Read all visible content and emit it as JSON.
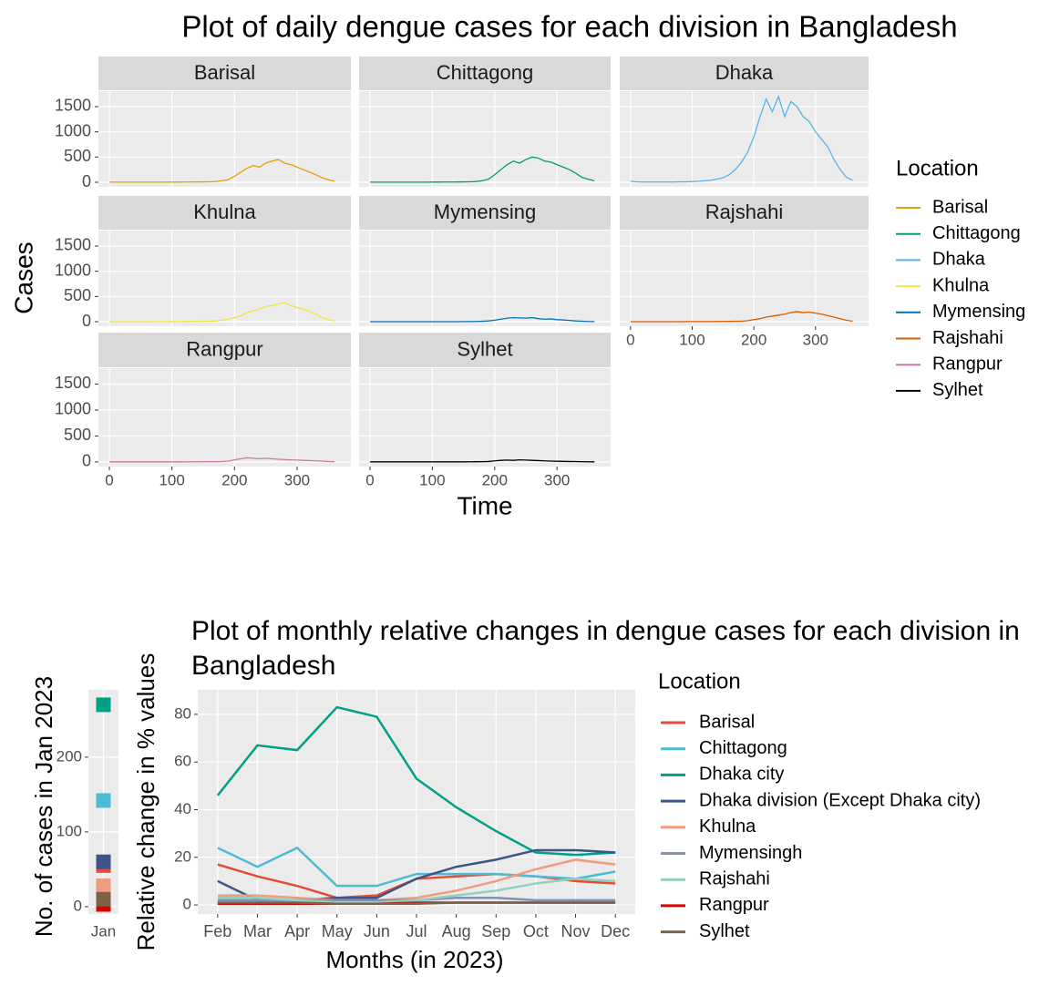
{
  "chart_data": [
    {
      "type": "line",
      "title": "Plot of daily dengue cases for each division in Bangladesh",
      "x_label": "Time",
      "y_label": "Cases",
      "legend_title": "Location",
      "legend": "right",
      "grid": true,
      "facets": true,
      "x": [
        0,
        10,
        20,
        30,
        40,
        50,
        60,
        70,
        80,
        90,
        100,
        110,
        120,
        130,
        140,
        150,
        160,
        170,
        180,
        190,
        200,
        210,
        220,
        230,
        240,
        250,
        260,
        270,
        280,
        290,
        300,
        310,
        320,
        330,
        340,
        350,
        360
      ],
      "xlim": [
        -17.5,
        386
      ],
      "xticks": [
        0,
        100,
        200,
        300
      ],
      "ylim": [
        -90,
        1807
      ],
      "yticks": [
        0,
        500,
        1000,
        1500
      ],
      "series": [
        {
          "name": "Barisal",
          "color": "#E69F00",
          "values": [
            2,
            2,
            2,
            2,
            2,
            2,
            2,
            3,
            3,
            3,
            4,
            4,
            5,
            5,
            6,
            8,
            10,
            15,
            30,
            50,
            120,
            200,
            280,
            330,
            300,
            380,
            420,
            450,
            380,
            350,
            300,
            250,
            200,
            150,
            90,
            50,
            20
          ]
        },
        {
          "name": "Chittagong",
          "color": "#009E73",
          "values": [
            2,
            2,
            2,
            2,
            2,
            2,
            2,
            3,
            3,
            3,
            4,
            4,
            5,
            5,
            6,
            8,
            10,
            15,
            30,
            60,
            150,
            250,
            350,
            420,
            380,
            450,
            500,
            480,
            420,
            400,
            350,
            300,
            250,
            180,
            100,
            60,
            30
          ]
        },
        {
          "name": "Dhaka",
          "color": "#56B4E9",
          "values": [
            20,
            10,
            5,
            5,
            5,
            5,
            5,
            5,
            10,
            10,
            15,
            20,
            30,
            40,
            60,
            90,
            150,
            250,
            400,
            600,
            900,
            1300,
            1650,
            1400,
            1700,
            1300,
            1600,
            1500,
            1300,
            1200,
            1000,
            850,
            700,
            450,
            250,
            100,
            40
          ]
        },
        {
          "name": "Khulna",
          "color": "#F0E442",
          "values": [
            1,
            1,
            1,
            1,
            1,
            1,
            1,
            2,
            2,
            2,
            3,
            3,
            4,
            5,
            6,
            8,
            10,
            15,
            30,
            50,
            80,
            120,
            180,
            220,
            250,
            300,
            320,
            350,
            380,
            320,
            280,
            250,
            200,
            150,
            80,
            40,
            15
          ]
        },
        {
          "name": "Mymensing",
          "color": "#0072B2",
          "values": [
            1,
            1,
            1,
            1,
            1,
            1,
            1,
            1,
            1,
            1,
            1,
            1,
            1,
            1,
            1,
            2,
            3,
            5,
            8,
            15,
            30,
            50,
            70,
            80,
            75,
            70,
            80,
            60,
            50,
            55,
            40,
            35,
            25,
            15,
            10,
            5,
            3
          ]
        },
        {
          "name": "Rajshahi",
          "color": "#D55E00",
          "values": [
            1,
            1,
            1,
            1,
            1,
            1,
            1,
            1,
            1,
            2,
            2,
            2,
            3,
            3,
            4,
            5,
            6,
            8,
            10,
            20,
            40,
            60,
            90,
            110,
            130,
            150,
            180,
            200,
            180,
            190,
            170,
            150,
            120,
            90,
            60,
            30,
            10
          ]
        },
        {
          "name": "Rangpur",
          "color": "#CC79A7",
          "values": [
            1,
            1,
            1,
            1,
            1,
            1,
            1,
            1,
            1,
            1,
            1,
            1,
            1,
            2,
            2,
            3,
            4,
            5,
            8,
            15,
            40,
            60,
            80,
            70,
            60,
            70,
            60,
            50,
            45,
            40,
            35,
            30,
            25,
            20,
            15,
            8,
            4
          ]
        },
        {
          "name": "Sylhet",
          "color": "#000000",
          "values": [
            1,
            1,
            1,
            1,
            1,
            1,
            1,
            1,
            1,
            1,
            1,
            1,
            1,
            1,
            1,
            1,
            2,
            3,
            4,
            8,
            20,
            30,
            35,
            30,
            40,
            35,
            30,
            25,
            20,
            15,
            12,
            10,
            8,
            6,
            4,
            2,
            1
          ]
        }
      ]
    },
    {
      "type": "strip",
      "y_label": "No. of cases in Jan 2023",
      "categories": [
        "Jan"
      ],
      "grid": true,
      "ylim": [
        -9.8,
        290
      ],
      "yticks": [
        0,
        100,
        200
      ],
      "series": [
        {
          "color": "#E64B35",
          "values": [
            55
          ]
        },
        {
          "color": "#4DBBD5",
          "values": [
            142
          ]
        },
        {
          "color": "#00A087",
          "values": [
            270
          ]
        },
        {
          "color": "#3C5488",
          "values": [
            60
          ]
        },
        {
          "color": "#F39B7F",
          "values": [
            28
          ]
        },
        {
          "color": "#8491B4",
          "values": [
            5
          ]
        },
        {
          "color": "#91D1C2",
          "values": [
            10
          ]
        },
        {
          "color": "#DC0000",
          "values": [
            3
          ]
        },
        {
          "color": "#7E6148",
          "values": [
            10
          ]
        }
      ]
    },
    {
      "type": "line",
      "title": "Plot of monthly relative changes in dengue cases for each division in Bangladesh",
      "x_label": "Months (in 2023)",
      "y_label": "Relative change in % values",
      "legend_title": "Location",
      "legend": "right",
      "grid": true,
      "categories": [
        "Feb",
        "Mar",
        "Apr",
        "May",
        "Jun",
        "Jul",
        "Aug",
        "Sep",
        "Oct",
        "Nov",
        "Dec"
      ],
      "ylim": [
        -3.8,
        90.3
      ],
      "yticks": [
        0,
        20,
        40,
        60,
        80
      ],
      "series": [
        {
          "name": "Barisal",
          "color": "#E64B35",
          "values": [
            17,
            12,
            8,
            3,
            4,
            11,
            12,
            13,
            12,
            10,
            9
          ]
        },
        {
          "name": "Chittagong",
          "color": "#4DBBD5",
          "values": [
            24,
            16,
            24,
            8,
            8,
            13,
            13,
            13,
            12,
            11,
            14
          ]
        },
        {
          "name": "Dhaka city",
          "color": "#00A087",
          "values": [
            46,
            67,
            65,
            83,
            79,
            53,
            41,
            31,
            22,
            21,
            22
          ]
        },
        {
          "name": "Dhaka division (Except Dhaka city)",
          "color": "#3C5488",
          "values": [
            10,
            2,
            2,
            3,
            3,
            11,
            16,
            19,
            23,
            23,
            22
          ]
        },
        {
          "name": "Khulna",
          "color": "#F39B7F",
          "values": [
            4,
            4,
            3,
            2,
            2,
            3,
            6,
            10,
            15,
            19,
            17
          ]
        },
        {
          "name": "Mymensingh",
          "color": "#8491B4",
          "values": [
            2,
            2,
            2,
            2,
            2,
            2,
            3,
            3,
            2,
            2,
            2
          ]
        },
        {
          "name": "Rajshahi",
          "color": "#91D1C2",
          "values": [
            3,
            3,
            2,
            1,
            1,
            2,
            4,
            6,
            9,
            11,
            10
          ]
        },
        {
          "name": "Rangpur",
          "color": "#DC0000",
          "values": [
            0.5,
            0.5,
            0.5,
            0.5,
            0.5,
            1,
            1,
            1,
            1,
            1,
            1
          ]
        },
        {
          "name": "Sylhet",
          "color": "#7E6148",
          "values": [
            1,
            1,
            1,
            0.5,
            0.5,
            0.5,
            1,
            1,
            1,
            1,
            1
          ]
        }
      ]
    }
  ]
}
